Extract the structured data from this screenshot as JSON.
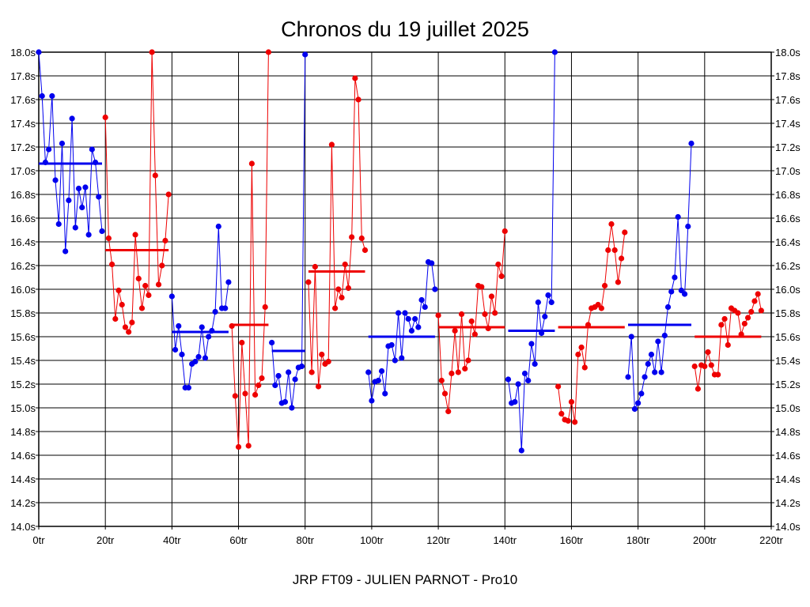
{
  "chart_data": {
    "type": "line",
    "title": "Chronos du 19 juillet 2025",
    "subtitle": "JRP FT09 - JULIEN PARNOT - Pro10",
    "x_unit": "tr",
    "y_unit": "s",
    "xlim": [
      0,
      220
    ],
    "ylim": [
      14.0,
      18.0
    ],
    "x_ticks": [
      0,
      20,
      40,
      60,
      80,
      100,
      120,
      140,
      160,
      180,
      200,
      220
    ],
    "x_tick_labels": [
      "0tr",
      "20tr",
      "40tr",
      "60tr",
      "80tr",
      "100tr",
      "120tr",
      "140tr",
      "160tr",
      "180tr",
      "200tr",
      "220tr"
    ],
    "y_ticks": [
      14.0,
      14.2,
      14.4,
      14.6,
      14.8,
      15.0,
      15.2,
      15.4,
      15.6,
      15.8,
      16.0,
      16.2,
      16.4,
      16.6,
      16.8,
      17.0,
      17.2,
      17.4,
      17.6,
      17.8,
      18.0
    ],
    "y_tick_labels": [
      "14.0s",
      "14.2s",
      "14.4s",
      "14.6s",
      "14.8s",
      "15.0s",
      "15.2s",
      "15.4s",
      "15.6s",
      "15.8s",
      "16.0s",
      "16.2s",
      "16.4s",
      "16.6s",
      "16.8s",
      "17.0s",
      "17.2s",
      "17.4s",
      "17.6s",
      "17.8s",
      "18.0s"
    ],
    "grid": true,
    "colors": {
      "blue": "#0000ee",
      "red": "#ee0000",
      "frame": "#000000"
    },
    "series": [
      {
        "color": "blue",
        "x_start": 0,
        "mean": 17.06,
        "values": [
          18.0,
          17.63,
          17.07,
          17.18,
          17.63,
          16.92,
          16.55,
          17.23,
          16.32,
          16.75,
          17.44,
          16.52,
          16.85,
          16.69,
          16.86,
          16.46,
          17.18,
          17.07,
          16.78,
          16.49
        ]
      },
      {
        "color": "red",
        "x_start": 20,
        "mean": 16.33,
        "values": [
          17.45,
          16.43,
          16.21,
          15.75,
          15.99,
          15.87,
          15.68,
          15.64,
          15.72,
          16.46,
          16.09,
          15.84,
          16.03,
          15.95,
          18.0,
          16.96,
          16.04,
          16.2,
          16.41,
          16.8
        ]
      },
      {
        "color": "blue",
        "x_start": 40,
        "mean": 15.64,
        "values": [
          15.94,
          15.49,
          15.69,
          15.45,
          15.17,
          15.17,
          15.37,
          15.39,
          15.43,
          15.68,
          15.42,
          15.6,
          15.65,
          15.81,
          16.53,
          15.84,
          15.84,
          16.06
        ]
      },
      {
        "color": "red",
        "x_start": 58,
        "mean": 15.7,
        "values": [
          15.69,
          15.1,
          14.67,
          15.55,
          15.12,
          14.68,
          17.06,
          15.11,
          15.19,
          15.25,
          15.85,
          18.0
        ]
      },
      {
        "color": "blue",
        "x_start": 70,
        "mean": 15.48,
        "values": [
          15.55,
          15.19,
          15.27,
          15.04,
          15.05,
          15.3,
          15.0,
          15.24,
          15.34,
          15.35,
          17.98
        ]
      },
      {
        "color": "red",
        "x_start": 81,
        "mean": 16.15,
        "values": [
          16.06,
          15.3,
          16.19,
          15.18,
          15.45,
          15.37,
          15.39,
          17.22,
          15.84,
          16.0,
          15.93,
          16.21,
          16.01,
          16.44,
          17.78,
          17.6,
          16.43,
          16.33
        ]
      },
      {
        "color": "blue",
        "x_start": 99,
        "mean": 15.6,
        "values": [
          15.3,
          15.06,
          15.22,
          15.23,
          15.31,
          15.12,
          15.52,
          15.53,
          15.4,
          15.8,
          15.42,
          15.8,
          15.75,
          15.65,
          15.75,
          15.68,
          15.91,
          15.85,
          16.23,
          16.22,
          16.0
        ]
      },
      {
        "color": "red",
        "x_start": 120,
        "mean": 15.68,
        "values": [
          15.78,
          15.23,
          15.12,
          14.97,
          15.29,
          15.65,
          15.3,
          15.79,
          15.33,
          15.4,
          15.73,
          15.62,
          16.03,
          16.02,
          15.79,
          15.67,
          15.94,
          15.8,
          16.21,
          16.11,
          16.49
        ]
      },
      {
        "color": "blue",
        "x_start": 141,
        "mean": 15.65,
        "values": [
          15.24,
          15.04,
          15.05,
          15.2,
          14.64,
          15.29,
          15.23,
          15.54,
          15.37,
          15.89,
          15.63,
          15.77,
          15.95,
          15.89,
          18.0
        ]
      },
      {
        "color": "red",
        "x_start": 156,
        "mean": 15.68,
        "values": [
          15.18,
          14.95,
          14.9,
          14.89,
          15.05,
          14.88,
          15.45,
          15.51,
          15.34,
          15.7,
          15.84,
          15.85,
          15.87,
          15.84,
          16.03,
          16.33,
          16.55,
          16.33,
          16.06,
          16.26,
          16.48
        ]
      },
      {
        "color": "blue",
        "x_start": 177,
        "mean": 15.7,
        "values": [
          15.26,
          15.6,
          14.99,
          15.04,
          15.12,
          15.26,
          15.37,
          15.45,
          15.3,
          15.56,
          15.3,
          15.61,
          15.85,
          15.98,
          16.1,
          16.61,
          15.99,
          15.96,
          16.53,
          17.23
        ]
      },
      {
        "color": "red",
        "x_start": 197,
        "mean": 15.6,
        "values": [
          15.35,
          15.16,
          15.36,
          15.35,
          15.47,
          15.36,
          15.28,
          15.28,
          15.7,
          15.75,
          15.53,
          15.84,
          15.82,
          15.8,
          15.62,
          15.71,
          15.76,
          15.81,
          15.9,
          15.96,
          15.82
        ]
      }
    ]
  }
}
